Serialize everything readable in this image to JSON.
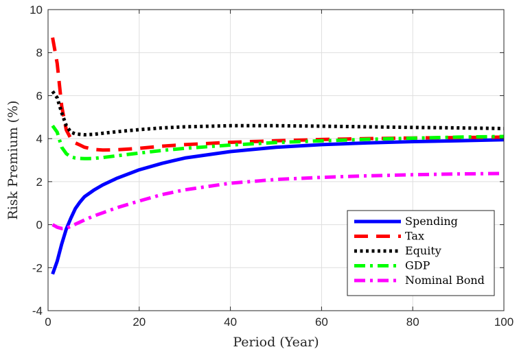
{
  "chart_data": {
    "type": "line",
    "xlabel": "Period (Year)",
    "ylabel": "Risk Premium (%)",
    "xlim": [
      0,
      100
    ],
    "ylim": [
      -4,
      10
    ],
    "xticks": [
      0,
      20,
      40,
      60,
      80,
      100
    ],
    "yticks": [
      -4,
      -2,
      0,
      2,
      4,
      6,
      8,
      10
    ],
    "grid": true,
    "legend_position": "bottom-right",
    "series": [
      {
        "name": "Spending",
        "color": "#0000ff",
        "style": "solid",
        "x": [
          1,
          2,
          3,
          4,
          5,
          6,
          7,
          8,
          10,
          12,
          15,
          20,
          25,
          30,
          40,
          50,
          60,
          70,
          80,
          90,
          100
        ],
        "y": [
          -2.3,
          -1.7,
          -0.9,
          -0.2,
          0.3,
          0.75,
          1.05,
          1.3,
          1.6,
          1.85,
          2.15,
          2.55,
          2.85,
          3.1,
          3.4,
          3.6,
          3.72,
          3.8,
          3.86,
          3.9,
          3.95
        ]
      },
      {
        "name": "Tax",
        "color": "#ff0000",
        "style": "dashed",
        "x": [
          1,
          2,
          3,
          4,
          5,
          6,
          7,
          8,
          10,
          12,
          15,
          20,
          25,
          30,
          40,
          50,
          60,
          70,
          80,
          90,
          100
        ],
        "y": [
          8.7,
          7.5,
          5.5,
          4.4,
          4.0,
          3.8,
          3.7,
          3.6,
          3.5,
          3.47,
          3.48,
          3.55,
          3.65,
          3.72,
          3.83,
          3.9,
          3.96,
          4.0,
          4.03,
          4.05,
          4.07
        ]
      },
      {
        "name": "Equity",
        "color": "#000000",
        "style": "dotted",
        "x": [
          1,
          2,
          3,
          4,
          5,
          6,
          7,
          8,
          10,
          12,
          15,
          20,
          25,
          30,
          40,
          50,
          60,
          70,
          80,
          90,
          100
        ],
        "y": [
          6.2,
          5.9,
          5.2,
          4.6,
          4.3,
          4.22,
          4.2,
          4.18,
          4.2,
          4.25,
          4.32,
          4.42,
          4.5,
          4.55,
          4.6,
          4.6,
          4.58,
          4.55,
          4.52,
          4.5,
          4.47
        ]
      },
      {
        "name": "GDP",
        "color": "#00ff00",
        "style": "dashdot",
        "x": [
          1,
          2,
          3,
          4,
          5,
          6,
          7,
          8,
          10,
          12,
          15,
          20,
          25,
          30,
          40,
          50,
          60,
          70,
          80,
          90,
          100
        ],
        "y": [
          4.6,
          4.3,
          3.6,
          3.3,
          3.15,
          3.1,
          3.08,
          3.07,
          3.08,
          3.12,
          3.2,
          3.33,
          3.45,
          3.55,
          3.7,
          3.82,
          3.9,
          3.97,
          4.02,
          4.07,
          4.1
        ]
      },
      {
        "name": "Nominal Bond",
        "color": "#ff00ff",
        "style": "dashdot",
        "x": [
          1,
          2,
          3,
          4,
          5,
          6,
          7,
          8,
          10,
          12,
          15,
          20,
          25,
          30,
          40,
          50,
          60,
          70,
          80,
          90,
          100
        ],
        "y": [
          0.0,
          -0.12,
          -0.18,
          -0.16,
          -0.08,
          0.02,
          0.12,
          0.22,
          0.4,
          0.55,
          0.78,
          1.1,
          1.4,
          1.62,
          1.93,
          2.1,
          2.2,
          2.27,
          2.32,
          2.36,
          2.38
        ]
      }
    ]
  }
}
